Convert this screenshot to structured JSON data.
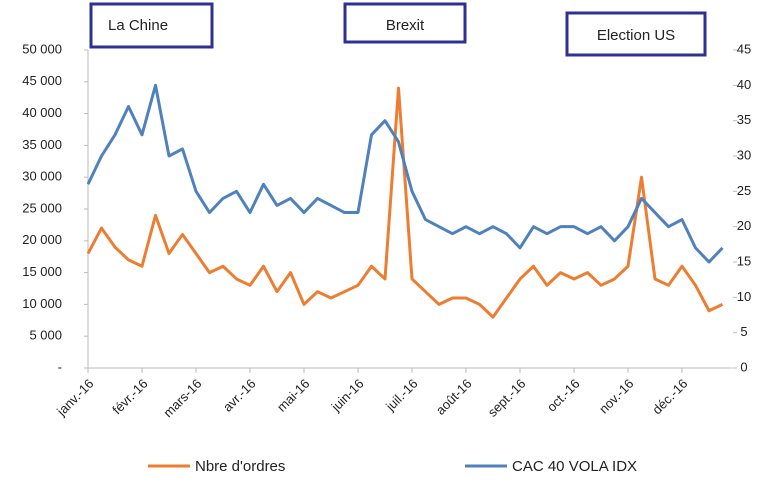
{
  "chart_data": {
    "type": "line",
    "annotations": [
      "La Chine",
      "Brexit",
      "Election US"
    ],
    "categories": [
      "janv.-16",
      null,
      null,
      null,
      "févr.-16",
      null,
      null,
      null,
      "mars-16",
      null,
      null,
      null,
      "avr.-16",
      null,
      null,
      null,
      "mai-16",
      null,
      null,
      null,
      "juin-16",
      null,
      null,
      null,
      "juil.-16",
      null,
      null,
      null,
      "août-16",
      null,
      null,
      null,
      "sept.-16",
      null,
      null,
      null,
      "oct.-16",
      null,
      null,
      null,
      "nov.-16",
      null,
      null,
      null,
      "déc.-16",
      null,
      null,
      null
    ],
    "series": [
      {
        "name": "Nbre d'ordres",
        "color": "#ed7d31",
        "axis": "y",
        "values": [
          18000,
          22000,
          19000,
          17000,
          16000,
          24000,
          18000,
          21000,
          18000,
          15000,
          16000,
          14000,
          13000,
          16000,
          12000,
          15000,
          10000,
          12000,
          11000,
          12000,
          13000,
          16000,
          14000,
          44000,
          14000,
          12000,
          10000,
          11000,
          11000,
          10000,
          8000,
          11000,
          14000,
          16000,
          13000,
          15000,
          14000,
          15000,
          13000,
          14000,
          16000,
          30000,
          14000,
          13000,
          16000,
          13000,
          9000,
          10000
        ]
      },
      {
        "name": "CAC 40 VOLA IDX",
        "color": "#4f81bd",
        "axis": "y2",
        "values": [
          26,
          30,
          33,
          37,
          33,
          40,
          30,
          31,
          25,
          22,
          24,
          25,
          22,
          26,
          23,
          24,
          22,
          24,
          23,
          22,
          22,
          33,
          35,
          32,
          25,
          21,
          20,
          19,
          20,
          19,
          20,
          19,
          17,
          20,
          19,
          20,
          20,
          19,
          20,
          18,
          20,
          24,
          22,
          20,
          21,
          17,
          15,
          17
        ]
      }
    ],
    "ylim": [
      0,
      50000
    ],
    "yticks": [
      {
        "value": 0,
        "label": "-"
      },
      {
        "value": 5000,
        "label": "5 000"
      },
      {
        "value": 10000,
        "label": "10 000"
      },
      {
        "value": 15000,
        "label": "15 000"
      },
      {
        "value": 20000,
        "label": "20 000"
      },
      {
        "value": 25000,
        "label": "25 000"
      },
      {
        "value": 30000,
        "label": "30 000"
      },
      {
        "value": 35000,
        "label": "35 000"
      },
      {
        "value": 40000,
        "label": "40 000"
      },
      {
        "value": 45000,
        "label": "45 000"
      },
      {
        "value": 50000,
        "label": "50 000"
      }
    ],
    "y2lim": [
      0,
      45
    ],
    "y2ticks": [
      0,
      5,
      10,
      15,
      20,
      25,
      30,
      35,
      40,
      45
    ],
    "grid": false,
    "legend": "bottom"
  }
}
